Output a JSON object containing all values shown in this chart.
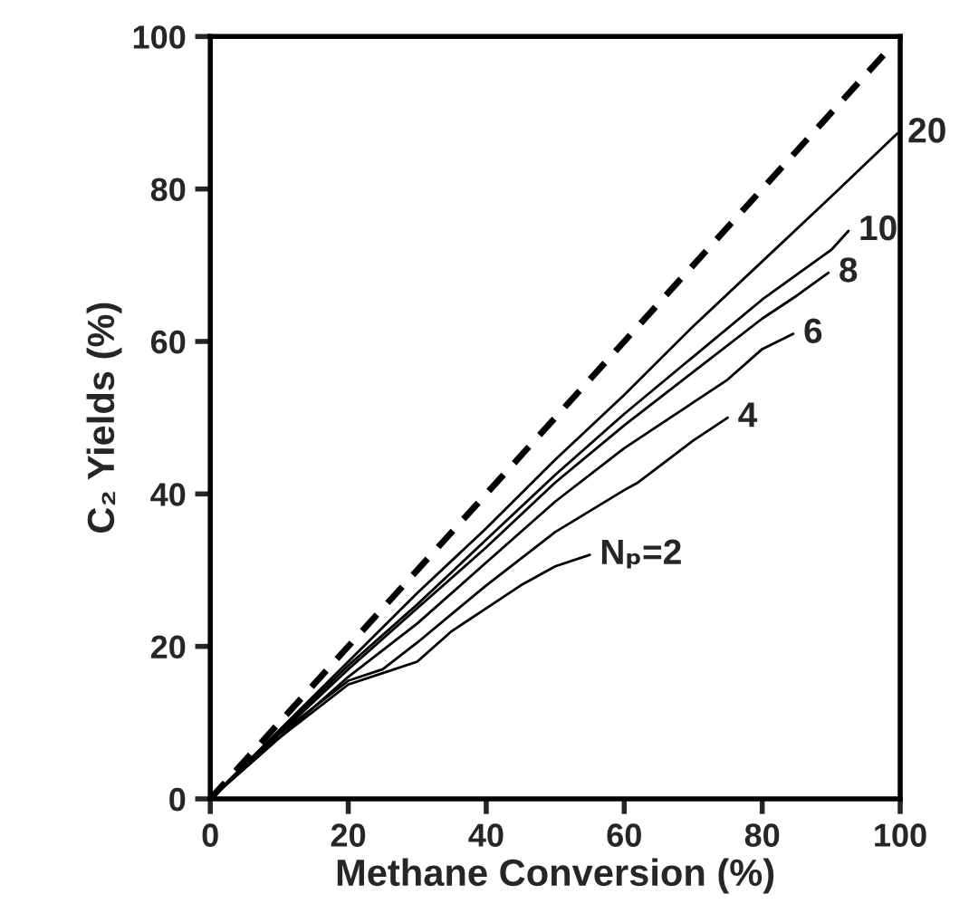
{
  "chart_data": {
    "type": "line",
    "xlabel": "Methane Conversion (%)",
    "ylabel": "C₂ Yields (%)",
    "xlim": [
      0,
      100
    ],
    "ylim": [
      0,
      100
    ],
    "xticks": [
      0,
      20,
      40,
      60,
      80,
      100
    ],
    "yticks": [
      0,
      20,
      40,
      60,
      80,
      100
    ],
    "grid": false,
    "legend": false,
    "marker": "none",
    "series": [
      {
        "color": "#000000",
        "line_style": "dashed",
        "x": [
          0,
          98
        ],
        "values": [
          0,
          98
        ]
      },
      {
        "name": "20",
        "color": "#000000",
        "line_style": "solid",
        "x": [
          0,
          10,
          20,
          30,
          40,
          50,
          60,
          70,
          80,
          90,
          99.6
        ],
        "values": [
          0,
          9,
          18,
          27,
          35.5,
          44.5,
          53,
          62,
          70.5,
          79,
          87.3
        ]
      },
      {
        "name": "10",
        "color": "#000000",
        "line_style": "solid",
        "x": [
          0,
          20,
          30,
          40,
          50,
          60,
          70,
          80,
          90,
          92.5
        ],
        "values": [
          0,
          17.5,
          25.5,
          34,
          42.5,
          50.5,
          58,
          65.5,
          72,
          74.5
        ]
      },
      {
        "name": "8",
        "color": "#000000",
        "line_style": "solid",
        "x": [
          0,
          20,
          30,
          40,
          50,
          60,
          70,
          80,
          85,
          89.6
        ],
        "values": [
          0,
          17,
          25,
          33,
          41.5,
          49,
          56,
          63,
          66,
          69
        ]
      },
      {
        "name": "6",
        "color": "#000000",
        "line_style": "solid",
        "x": [
          0,
          20,
          30,
          40,
          50,
          60,
          65,
          75,
          80,
          84.5
        ],
        "values": [
          0,
          16,
          23,
          31,
          39,
          46,
          49,
          55,
          59,
          61
        ]
      },
      {
        "name": "4",
        "color": "#000000",
        "line_style": "solid",
        "x": [
          0,
          10,
          20,
          25,
          30,
          40,
          50,
          60,
          62,
          70,
          75
        ],
        "values": [
          0,
          8.5,
          15.5,
          17,
          20.5,
          28,
          35,
          40.5,
          41.5,
          47,
          50
        ]
      },
      {
        "name": "Nₚ=2",
        "color": "#000000",
        "line_style": "solid",
        "x": [
          0,
          10,
          20,
          25,
          30,
          35,
          40,
          45,
          50,
          55
        ],
        "values": [
          0,
          8,
          15,
          16.5,
          18,
          22,
          25,
          28,
          30.5,
          32
        ]
      }
    ]
  }
}
